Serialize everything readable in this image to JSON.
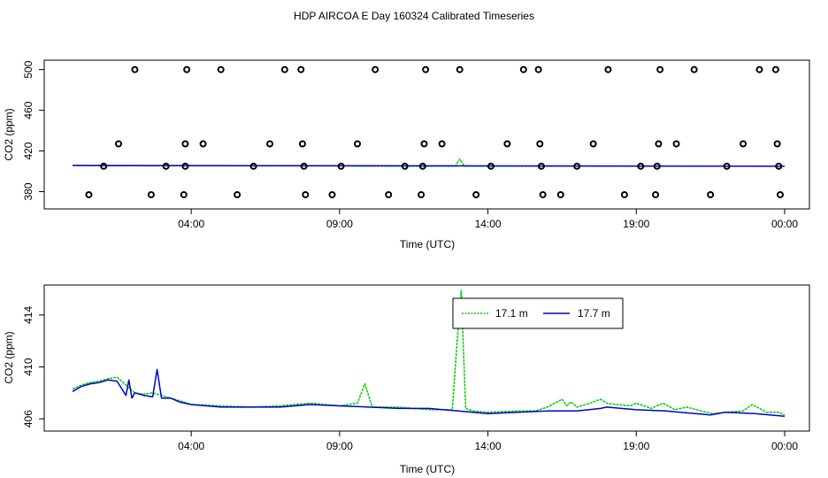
{
  "chart_data": [
    {
      "type": "scatter",
      "title": "HDP AIRCOA E  Day 160324  Calibrated Timeseries",
      "xlabel": "Time (UTC)",
      "ylabel": "CO2 (ppm)",
      "xlim": [
        0,
        24.5
      ],
      "ylim": [
        370,
        504
      ],
      "x_ticks": [
        4,
        9,
        14,
        19,
        24
      ],
      "x_tick_labels": [
        "04:00",
        "09:00",
        "14:00",
        "19:00",
        "00:00"
      ],
      "y_ticks": [
        380,
        420,
        460,
        500
      ],
      "y_tick_labels": [
        "380",
        "420",
        "460",
        "500"
      ],
      "cal_points": [
        {
          "x": 0.55,
          "y": 377
        },
        {
          "x": 1.05,
          "y": 405
        },
        {
          "x": 1.55,
          "y": 427
        },
        {
          "x": 2.1,
          "y": 500
        },
        {
          "x": 2.65,
          "y": 377
        },
        {
          "x": 3.15,
          "y": 405
        },
        {
          "x": 3.75,
          "y": 377
        },
        {
          "x": 3.8,
          "y": 405
        },
        {
          "x": 3.8,
          "y": 427
        },
        {
          "x": 3.85,
          "y": 500
        },
        {
          "x": 4.4,
          "y": 427
        },
        {
          "x": 5,
          "y": 500
        },
        {
          "x": 5.55,
          "y": 377
        },
        {
          "x": 6.1,
          "y": 405
        },
        {
          "x": 6.65,
          "y": 427
        },
        {
          "x": 7.15,
          "y": 500
        },
        {
          "x": 7.7,
          "y": 500
        },
        {
          "x": 7.75,
          "y": 427
        },
        {
          "x": 7.8,
          "y": 405
        },
        {
          "x": 7.85,
          "y": 377
        },
        {
          "x": 8.75,
          "y": 377
        },
        {
          "x": 9.05,
          "y": 405
        },
        {
          "x": 9.6,
          "y": 427
        },
        {
          "x": 10.2,
          "y": 500
        },
        {
          "x": 10.65,
          "y": 377
        },
        {
          "x": 11.2,
          "y": 405
        },
        {
          "x": 11.75,
          "y": 377
        },
        {
          "x": 11.8,
          "y": 405
        },
        {
          "x": 11.85,
          "y": 427
        },
        {
          "x": 11.9,
          "y": 500
        },
        {
          "x": 12.45,
          "y": 427
        },
        {
          "x": 13.05,
          "y": 500
        },
        {
          "x": 13.6,
          "y": 377
        },
        {
          "x": 14.1,
          "y": 405
        },
        {
          "x": 14.65,
          "y": 427
        },
        {
          "x": 15.2,
          "y": 500
        },
        {
          "x": 15.7,
          "y": 500
        },
        {
          "x": 15.75,
          "y": 427
        },
        {
          "x": 15.8,
          "y": 405
        },
        {
          "x": 15.85,
          "y": 377
        },
        {
          "x": 16.45,
          "y": 377
        },
        {
          "x": 17,
          "y": 405
        },
        {
          "x": 17.55,
          "y": 427
        },
        {
          "x": 18.05,
          "y": 500
        },
        {
          "x": 18.6,
          "y": 377
        },
        {
          "x": 19.15,
          "y": 405
        },
        {
          "x": 19.65,
          "y": 377
        },
        {
          "x": 19.7,
          "y": 405
        },
        {
          "x": 19.75,
          "y": 427
        },
        {
          "x": 19.8,
          "y": 500
        },
        {
          "x": 20.35,
          "y": 427
        },
        {
          "x": 20.95,
          "y": 500
        },
        {
          "x": 21.5,
          "y": 377
        },
        {
          "x": 22.05,
          "y": 405
        },
        {
          "x": 22.6,
          "y": 427
        },
        {
          "x": 23.15,
          "y": 500
        },
        {
          "x": 23.7,
          "y": 500
        },
        {
          "x": 23.75,
          "y": 427
        },
        {
          "x": 23.8,
          "y": 405
        },
        {
          "x": 23.85,
          "y": 377
        }
      ],
      "series": [
        {
          "name": "17.1 m",
          "color": "#00cc00",
          "x": [
            0,
            12.9,
            13.05,
            13.2,
            13.4,
            24
          ],
          "values": [
            405.8,
            405,
            412,
            405,
            405,
            405
          ]
        },
        {
          "name": "17.7 m",
          "color": "#0000cc",
          "x": [
            0,
            24
          ],
          "values": [
            405.8,
            405
          ]
        }
      ]
    },
    {
      "type": "line",
      "xlabel": "Time (UTC)",
      "ylabel": "CO2 (ppm)",
      "xlim": [
        0,
        24.5
      ],
      "ylim": [
        405.6,
        415.9
      ],
      "x_ticks": [
        4,
        9,
        14,
        19,
        24
      ],
      "x_tick_labels": [
        "04:00",
        "09:00",
        "14:00",
        "19:00",
        "00:00"
      ],
      "y_ticks": [
        406,
        410,
        414
      ],
      "y_tick_labels": [
        "406",
        "410",
        "414"
      ],
      "legend": "top-center",
      "series": [
        {
          "name": "17.1 m",
          "color": "#00cc00",
          "x": [
            0,
            0.3,
            0.6,
            0.9,
            1.2,
            1.5,
            1.8,
            2.1,
            2.4,
            2.7,
            3,
            3.3,
            3.6,
            4,
            5,
            6,
            7,
            8,
            8.5,
            9,
            9.6,
            9.85,
            10.1,
            11,
            12,
            12.8,
            12.95,
            13.1,
            13.25,
            13.5,
            14,
            15,
            15.6,
            16,
            16.5,
            16.65,
            16.8,
            17,
            17.3,
            17.8,
            18,
            18.3,
            18.8,
            19,
            19.5,
            19.9,
            20.3,
            20.7,
            21.2,
            21.6,
            22,
            22.6,
            22.9,
            23.4,
            23.8,
            24
          ],
          "values": [
            408.3,
            408.6,
            408.8,
            408.9,
            409.1,
            409.2,
            408.6,
            408,
            407.9,
            408,
            407.8,
            407.6,
            407.4,
            407.1,
            407,
            406.9,
            407,
            407.2,
            407.1,
            407,
            407.2,
            408.7,
            406.9,
            406.9,
            406.7,
            406.7,
            411.6,
            415.9,
            406.8,
            406.6,
            406.5,
            406.6,
            406.6,
            406.9,
            407.5,
            407,
            407.3,
            406.9,
            407.1,
            407.5,
            407.2,
            407.1,
            407,
            407.2,
            406.8,
            407.2,
            406.7,
            406.9,
            406.6,
            406.4,
            406.5,
            406.6,
            407.1,
            406.5,
            406.5,
            406.3
          ]
        },
        {
          "name": "17.7 m",
          "color": "#0000cc",
          "x": [
            0,
            0.3,
            0.6,
            0.9,
            1.2,
            1.5,
            1.8,
            1.9,
            2,
            2.1,
            2.4,
            2.7,
            2.85,
            3,
            3.3,
            3.6,
            4,
            5,
            6,
            7,
            8,
            9,
            10,
            11,
            12,
            13,
            14,
            15,
            16,
            17,
            17.8,
            18,
            19,
            20,
            21,
            21.5,
            22,
            23,
            24
          ],
          "values": [
            408.1,
            408.5,
            408.7,
            408.8,
            409,
            408.9,
            407.8,
            409,
            407.6,
            408,
            407.8,
            407.7,
            409.8,
            407.6,
            407.6,
            407.3,
            407.1,
            406.9,
            406.9,
            406.9,
            407.1,
            407,
            406.9,
            406.8,
            406.8,
            406.6,
            406.4,
            406.5,
            406.6,
            406.6,
            406.8,
            406.9,
            406.7,
            406.6,
            406.4,
            406.3,
            406.5,
            406.4,
            406.2
          ]
        }
      ]
    }
  ]
}
